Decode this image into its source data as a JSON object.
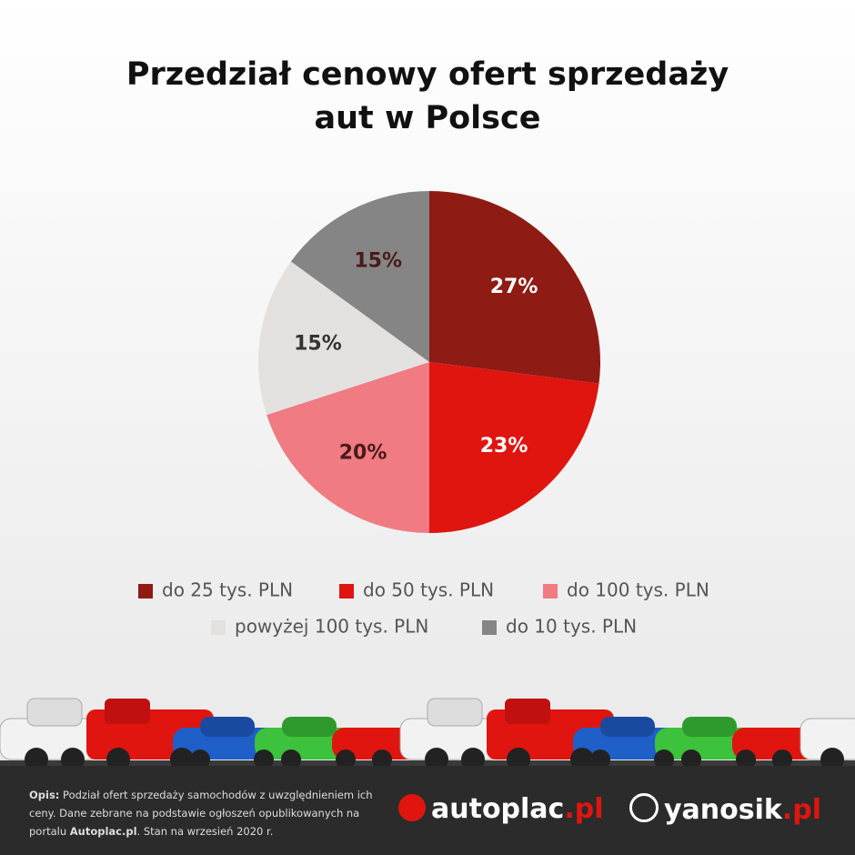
{
  "chart_data": {
    "type": "pie",
    "title": "Przedział cenowy ofert sprzedaży aut w Polsce",
    "categories": [
      "do 25 tys. PLN",
      "do 50 tys. PLN",
      "do 100 tys. PLN",
      "powyżej 100 tys. PLN",
      "do 10 tys. PLN"
    ],
    "values": [
      27,
      23,
      20,
      15,
      15
    ],
    "value_labels": [
      "27%",
      "23%",
      "20%",
      "15%",
      "15%"
    ],
    "colors": [
      "#8e1b14",
      "#e0150f",
      "#f07b82",
      "#e3e1e0",
      "#858585"
    ]
  },
  "footer": {
    "description": [
      "Opis:",
      " Podział ofert sprzedaży samochodów z uwzględnieniem ich ceny. Dane zebrane na podstawie ogłoszeń opublikowanych na portalu ",
      "Autoplac.pl",
      ". Stan na wrzesień 2020 r."
    ],
    "logo_1": [
      "autoplac",
      ".pl"
    ],
    "logo_2": [
      "yanosik",
      ".pl"
    ]
  }
}
